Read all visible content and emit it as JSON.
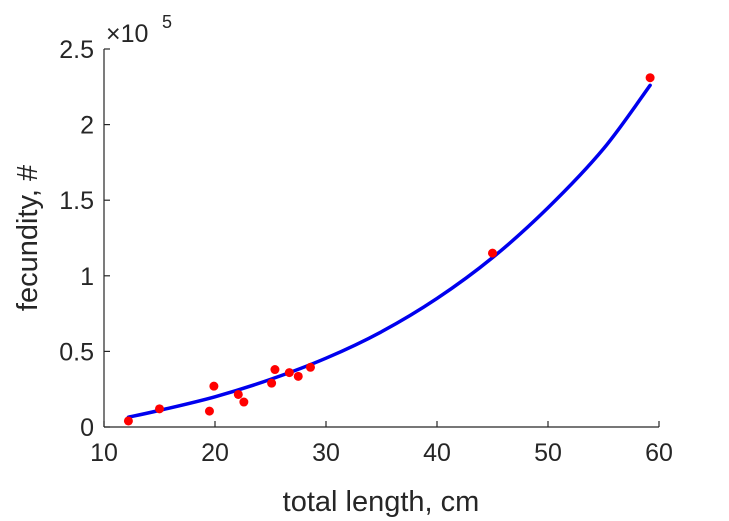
{
  "chart_data": {
    "type": "scatter",
    "title": "",
    "xlabel": "total length, cm",
    "ylabel": "fecundity, #",
    "xlim": [
      10,
      60
    ],
    "ylim": [
      0,
      250000
    ],
    "x_ticks": [
      10,
      20,
      30,
      40,
      50,
      60
    ],
    "x_tick_labels": [
      "10",
      "20",
      "30",
      "40",
      "50",
      "60"
    ],
    "y_ticks": [
      0,
      50000,
      100000,
      150000,
      200000,
      250000
    ],
    "y_tick_labels": [
      "0",
      "0.5",
      "1",
      "1.5",
      "2",
      "2.5"
    ],
    "y_exponent_label": {
      "times": "×10",
      "power": "5"
    },
    "grid": false,
    "series": [
      {
        "kind": "scatter",
        "color": "#ff0000",
        "points": [
          {
            "x": 12.2,
            "y": 4000
          },
          {
            "x": 15.0,
            "y": 12000
          },
          {
            "x": 19.5,
            "y": 10500
          },
          {
            "x": 19.9,
            "y": 27000
          },
          {
            "x": 22.1,
            "y": 21500
          },
          {
            "x": 22.6,
            "y": 16500
          },
          {
            "x": 25.1,
            "y": 29000
          },
          {
            "x": 25.4,
            "y": 38000
          },
          {
            "x": 26.7,
            "y": 36000
          },
          {
            "x": 27.5,
            "y": 33500
          },
          {
            "x": 28.6,
            "y": 39500
          },
          {
            "x": 45.0,
            "y": 115000
          },
          {
            "x": 59.2,
            "y": 231000
          }
        ]
      },
      {
        "kind": "line",
        "color": "#0000ee",
        "points": [
          {
            "x": 12.2,
            "y": 6500
          },
          {
            "x": 15,
            "y": 11000
          },
          {
            "x": 20,
            "y": 20000
          },
          {
            "x": 25,
            "y": 31500
          },
          {
            "x": 30,
            "y": 45500
          },
          {
            "x": 35,
            "y": 63000
          },
          {
            "x": 40,
            "y": 85000
          },
          {
            "x": 45,
            "y": 112000
          },
          {
            "x": 50,
            "y": 145000
          },
          {
            "x": 55,
            "y": 184000
          },
          {
            "x": 59.2,
            "y": 226000
          }
        ]
      }
    ]
  }
}
